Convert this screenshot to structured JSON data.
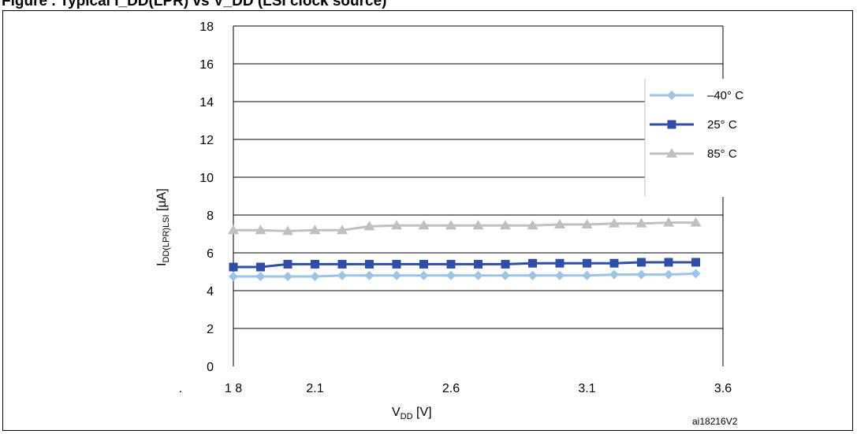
{
  "figure_header": "Figure  . Typical I_DD(LPR) vs V_DD (LSI clock source)",
  "reference": "ai18216V2",
  "x_stray_mark": ".",
  "colors": {
    "series_minus40": "#9DC3E6",
    "series_25": "#2F4EA8",
    "series_85": "#C0C0C0",
    "gridline": "#000000"
  },
  "chart_data": {
    "type": "line",
    "xlabel": {
      "main": "V",
      "sub": "DD",
      "rest": " [V]"
    },
    "ylabel": {
      "main": "I",
      "sub": "DD(LPR)LSI",
      "rest": "  [µA]"
    },
    "ylim": [
      0,
      18
    ],
    "yticks": [
      "0",
      "2",
      "4",
      "6",
      "8",
      "10",
      "12",
      "14",
      "16",
      "18"
    ],
    "xlim": [
      1.8,
      3.6
    ],
    "xticks": [
      {
        "value": 1.8,
        "label": "1 8"
      },
      {
        "value": 2.1,
        "label": "2.1"
      },
      {
        "value": 2.6,
        "label": "2.6"
      },
      {
        "value": 3.1,
        "label": "3.1"
      },
      {
        "value": 3.6,
        "label": "3.6"
      }
    ],
    "grid": true,
    "legend_position": "top-right",
    "x": [
      1.8,
      1.9,
      2.0,
      2.1,
      2.2,
      2.3,
      2.4,
      2.5,
      2.6,
      2.7,
      2.8,
      2.9,
      3.0,
      3.1,
      3.2,
      3.3,
      3.4,
      3.5
    ],
    "series": [
      {
        "name": "–40° C",
        "marker": "diamond",
        "values": [
          4.75,
          4.75,
          4.75,
          4.75,
          4.8,
          4.8,
          4.8,
          4.8,
          4.8,
          4.8,
          4.8,
          4.8,
          4.8,
          4.8,
          4.85,
          4.85,
          4.85,
          4.9
        ]
      },
      {
        "name": "25° C",
        "marker": "square",
        "values": [
          5.25,
          5.25,
          5.4,
          5.4,
          5.4,
          5.4,
          5.4,
          5.4,
          5.4,
          5.4,
          5.4,
          5.45,
          5.45,
          5.45,
          5.45,
          5.5,
          5.5,
          5.5
        ]
      },
      {
        "name": "85° C",
        "marker": "triangle",
        "values": [
          7.2,
          7.2,
          7.15,
          7.2,
          7.2,
          7.4,
          7.45,
          7.45,
          7.45,
          7.45,
          7.45,
          7.45,
          7.5,
          7.5,
          7.55,
          7.55,
          7.6,
          7.6
        ]
      }
    ]
  }
}
